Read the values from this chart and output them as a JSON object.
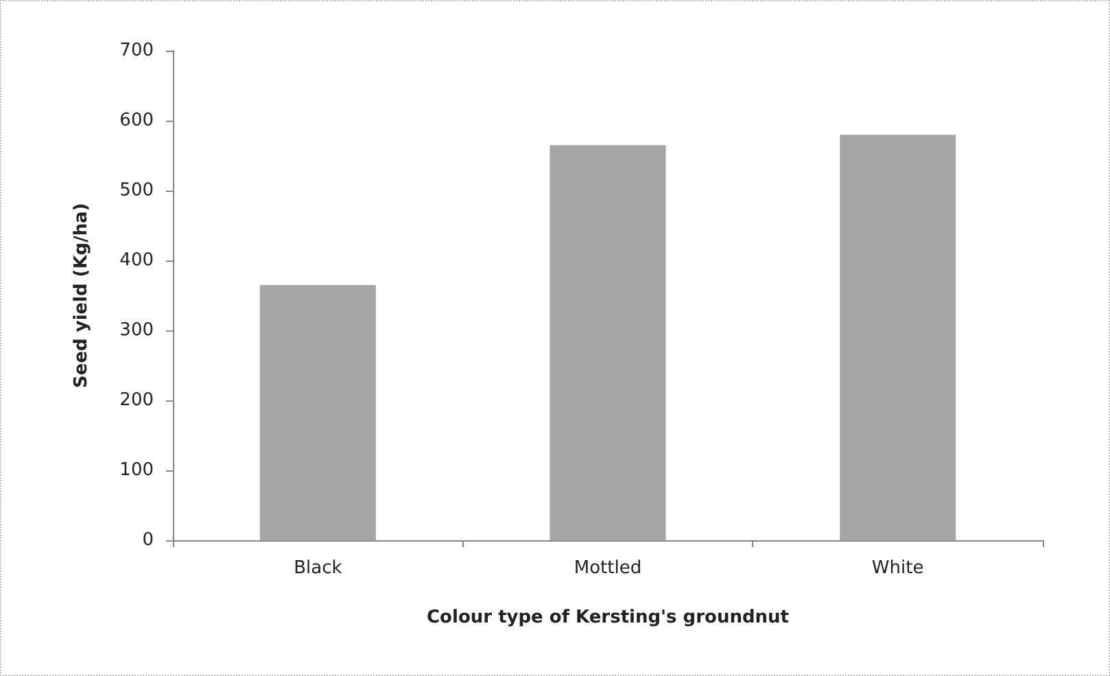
{
  "chart_data": {
    "type": "bar",
    "xlabel": "Colour type of Kersting's groundnut",
    "ylabel": "Seed yield (Kg/ha)",
    "categories": [
      "Black",
      "Mottled",
      "White"
    ],
    "values": [
      365,
      565,
      580
    ],
    "color": "#a6a6a6",
    "ylim": [
      0,
      700
    ],
    "yticks": [
      0,
      100,
      200,
      300,
      400,
      500,
      600,
      700
    ],
    "grid": false
  }
}
